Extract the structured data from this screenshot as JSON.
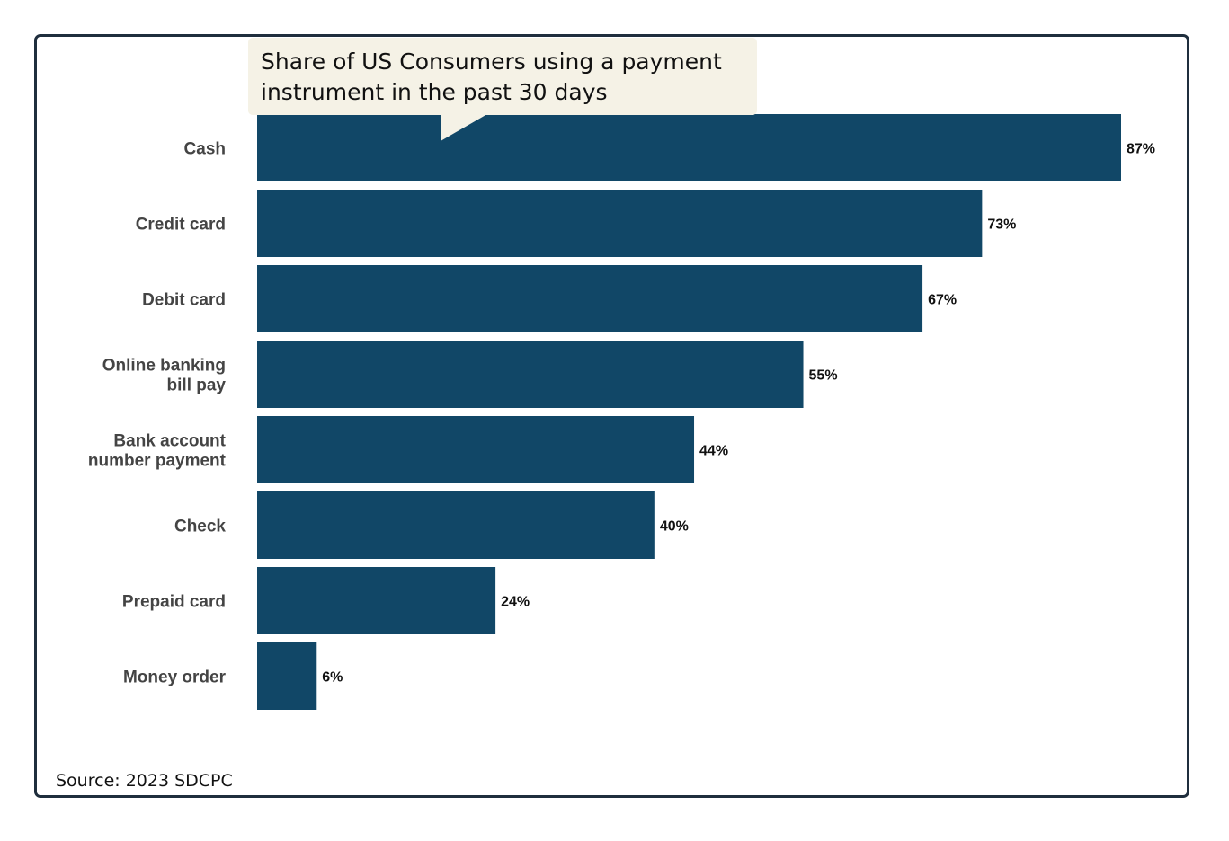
{
  "chart_data": {
    "type": "bar",
    "orientation": "horizontal",
    "title": "Share of US Consumers using a payment instrument in the past 30 days",
    "categories": [
      "Cash",
      "Credit card",
      "Debit card",
      "Online banking bill pay",
      "Bank account number payment",
      "Check",
      "Prepaid card",
      "Money order"
    ],
    "category_lines": [
      [
        "Cash"
      ],
      [
        "Credit card"
      ],
      [
        "Debit card"
      ],
      [
        "Online banking",
        "bill pay"
      ],
      [
        "Bank account",
        "number payment"
      ],
      [
        "Check"
      ],
      [
        "Prepaid card"
      ],
      [
        "Money order"
      ]
    ],
    "values": [
      87,
      73,
      67,
      55,
      44,
      40,
      24,
      6
    ],
    "data_labels": [
      "87%",
      "73%",
      "67%",
      "55%",
      "44%",
      "40%",
      "24%",
      "6%"
    ],
    "unit": "%",
    "xlim": [
      0,
      87
    ],
    "grid": false,
    "legend": "none",
    "bar_color": "#114767"
  },
  "callout": {
    "line1": "Share of US Consumers using a payment",
    "line2": "instrument in the past 30 days"
  },
  "source": "Source: 2023 SDCPC",
  "colors": {
    "bar": "#114767",
    "frame": "#1f2e3d",
    "callout_bg": "#f5f2e6",
    "category_text": "#444444",
    "value_text": "#111111"
  }
}
